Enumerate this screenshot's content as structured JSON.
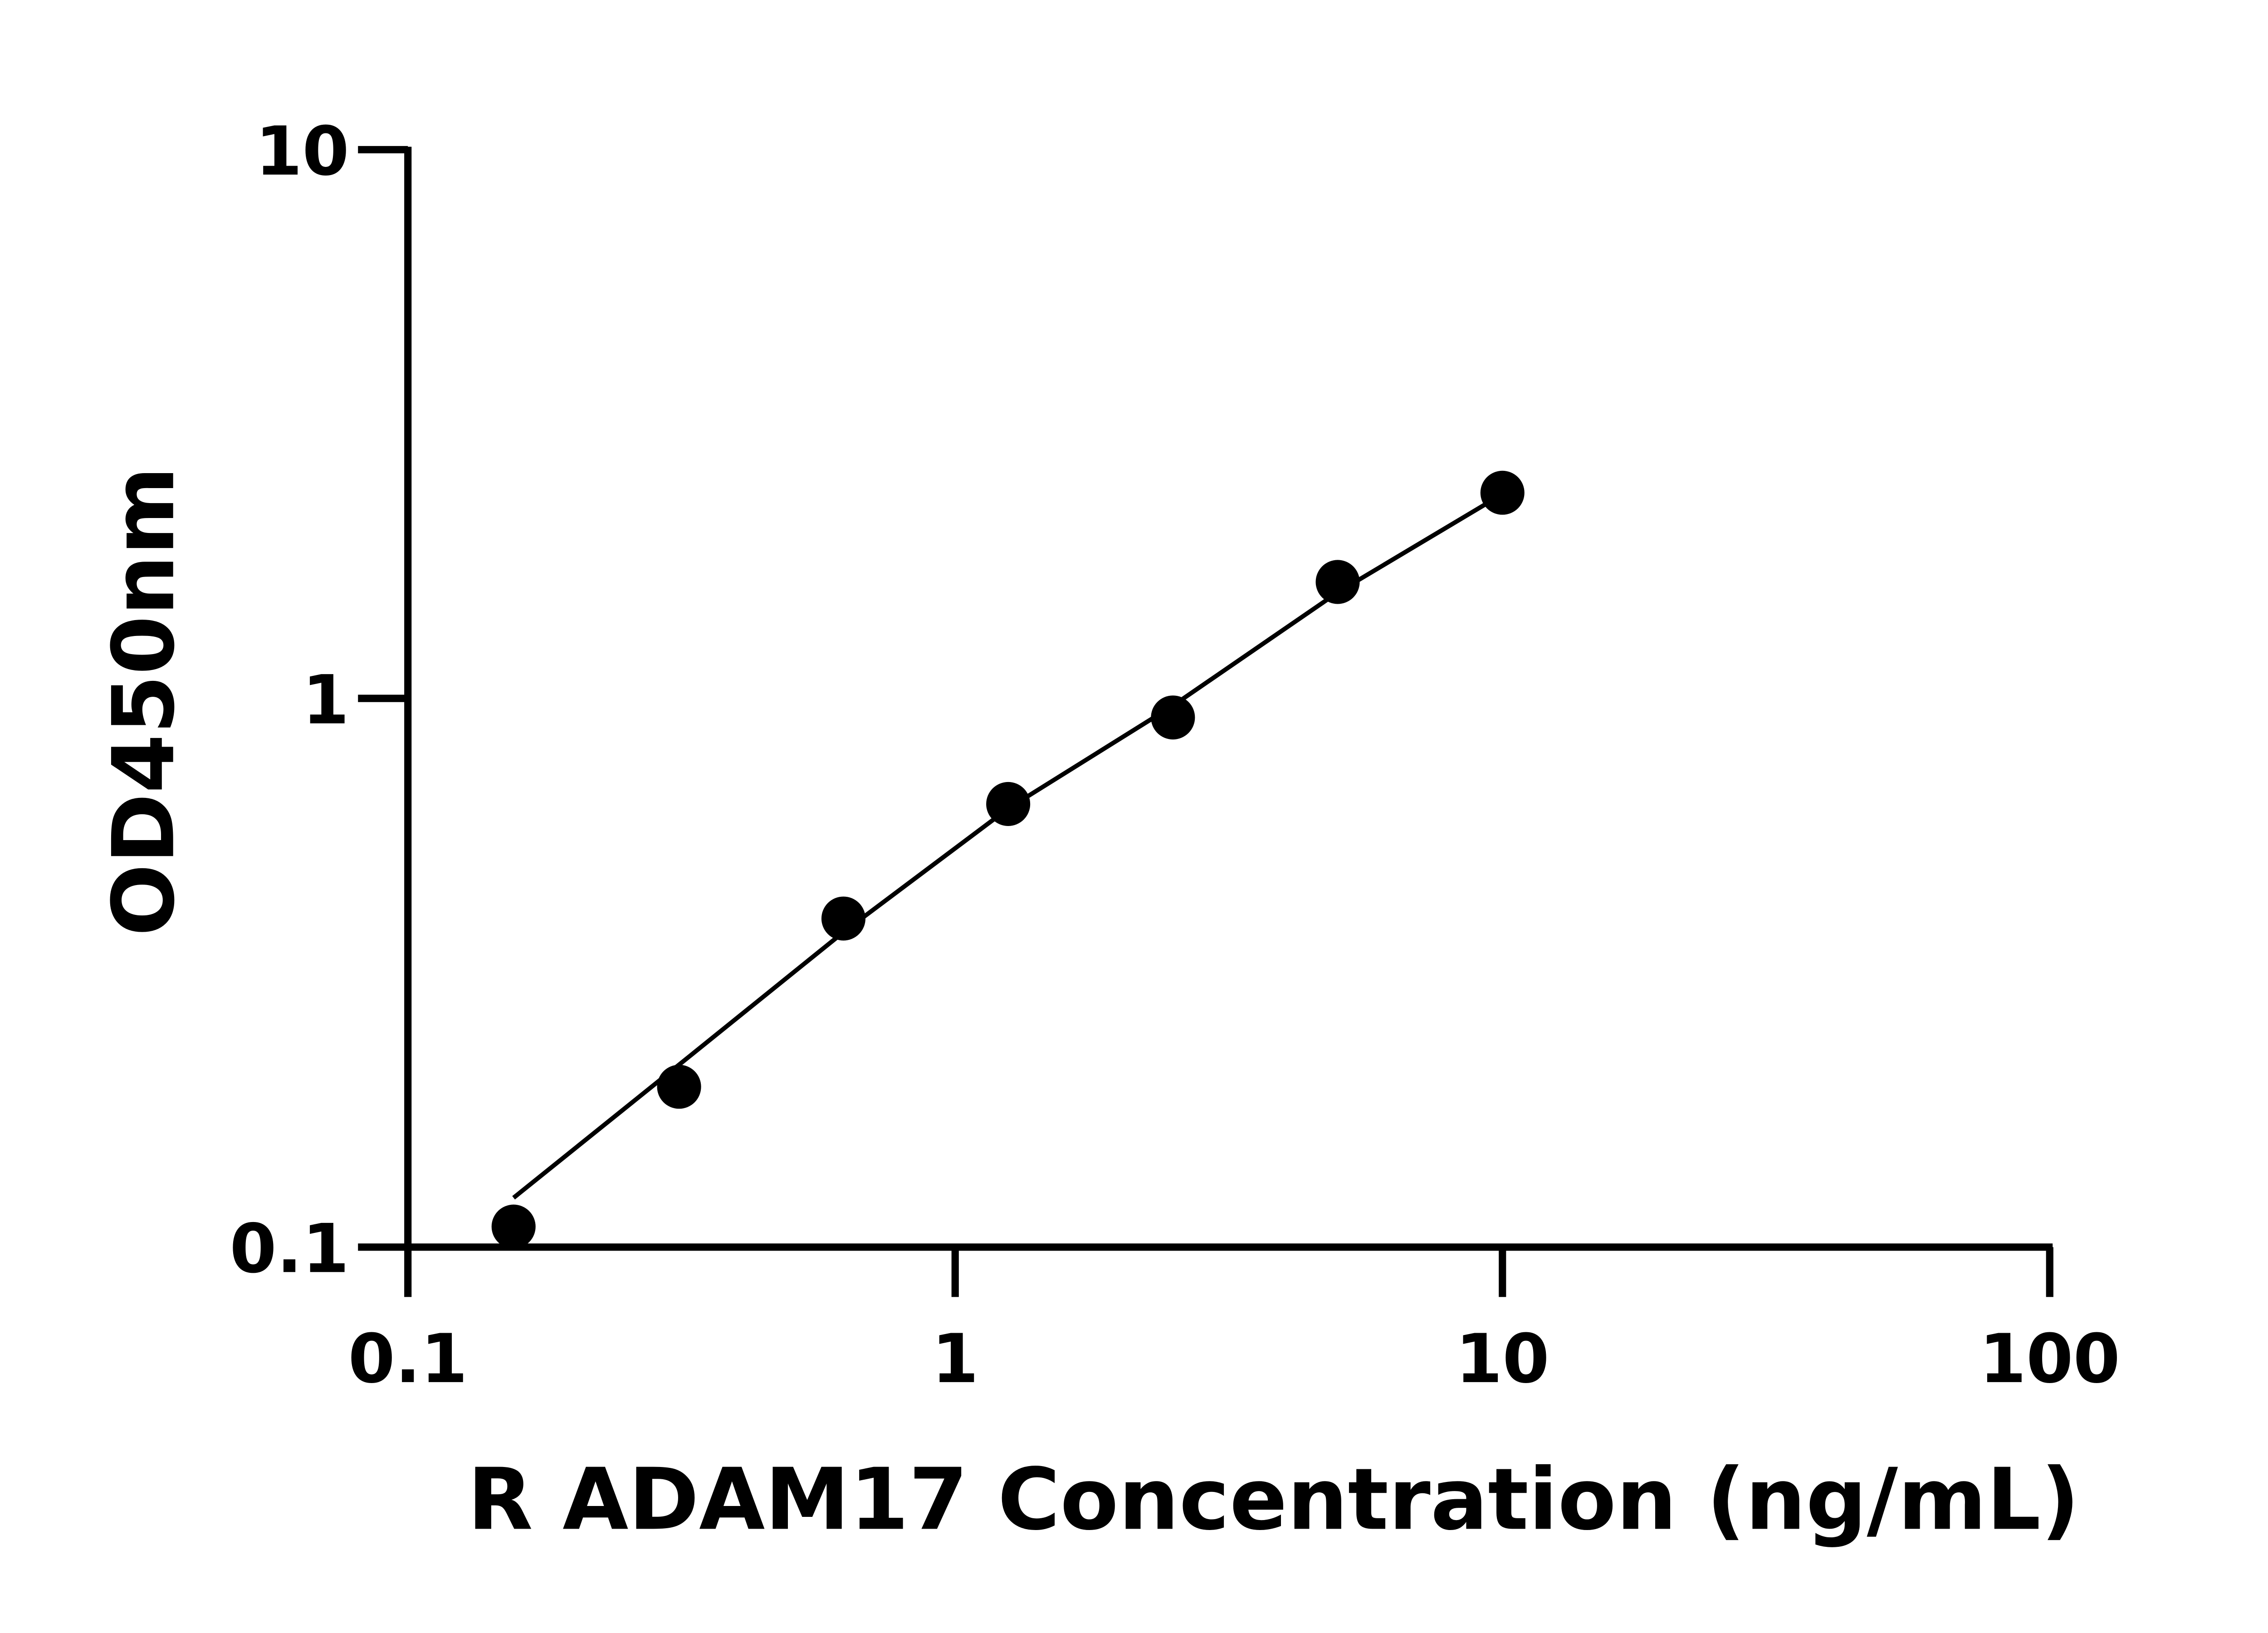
{
  "chart_data": {
    "type": "scatter",
    "x_label": "R ADAM17 Concentration (ng/mL)",
    "y_label": "OD450nm",
    "x_log": true,
    "y_log": true,
    "xlim": [
      0.1,
      100
    ],
    "xticks": [
      0.1,
      1,
      10,
      100
    ],
    "ylim": [
      0.1,
      10
    ],
    "yticks": [
      0.1,
      1,
      10
    ],
    "series": [
      {
        "x": [
          0.156,
          0.313,
          0.625,
          1.25,
          2.5,
          5,
          10
        ],
        "values": [
          0.109,
          0.196,
          0.397,
          0.642,
          0.923,
          1.63,
          2.37
        ],
        "color": "#000000"
      }
    ],
    "fit": {
      "x": [
        0.156,
        0.313,
        0.625,
        1.25,
        2.5,
        5,
        9.6
      ],
      "values": [
        0.123,
        0.215,
        0.375,
        0.63,
        0.97,
        1.56,
        2.3
      ],
      "color": "#000000"
    }
  }
}
